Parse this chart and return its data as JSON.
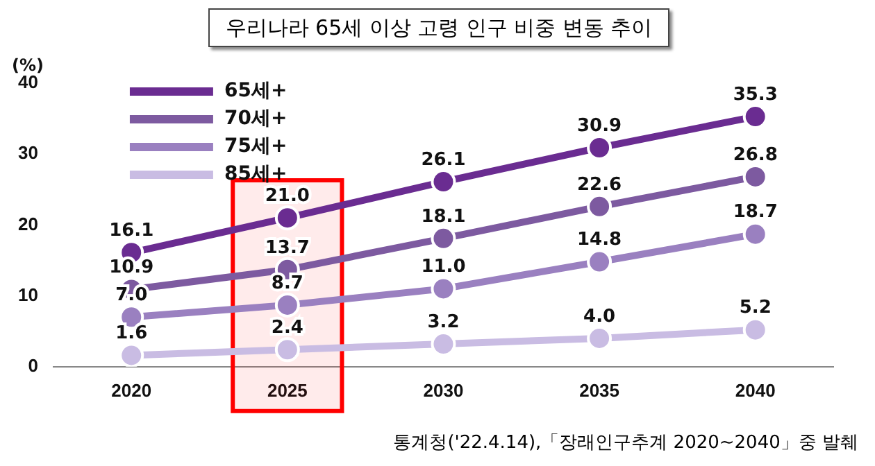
{
  "chart_data": {
    "type": "line",
    "title": "우리나라 65세 이상 고령 인구 비중 변동 추이",
    "ylabel": "(%)",
    "categories": [
      "2020",
      "2025",
      "2030",
      "2035",
      "2040"
    ],
    "series": [
      {
        "name": "65세+",
        "color": "#6a2c91",
        "values": [
          16.1,
          21.0,
          26.1,
          30.9,
          35.3
        ],
        "value_labels": [
          "16.1",
          "21.0",
          "26.1",
          "30.9",
          "35.3"
        ]
      },
      {
        "name": "70세+",
        "color": "#7d5aa0",
        "values": [
          10.9,
          13.7,
          18.1,
          22.6,
          26.8
        ],
        "value_labels": [
          "10.9",
          "13.7",
          "18.1",
          "22.6",
          "26.8"
        ]
      },
      {
        "name": "75세+",
        "color": "#9a80c0",
        "values": [
          7.0,
          8.7,
          11.0,
          14.8,
          18.7
        ],
        "value_labels": [
          "7.0",
          "8.7",
          "11.0",
          "14.8",
          "18.7"
        ]
      },
      {
        "name": "85세+",
        "color": "#c9bce3",
        "values": [
          1.6,
          2.4,
          3.2,
          4.0,
          5.2
        ],
        "value_labels": [
          "1.6",
          "2.4",
          "3.2",
          "4.0",
          "5.2"
        ]
      }
    ],
    "ylim": [
      0,
      40
    ],
    "yticks": [
      0,
      10,
      20,
      30,
      40
    ],
    "grid": false,
    "legend": "top left",
    "marker": "circle",
    "line_style": "solid",
    "bands": [
      {
        "axis": "x",
        "from": "2025",
        "to": "2025",
        "color": "#ff0000"
      }
    ],
    "annotations": [
      "통계청('22.4.14),「장래인구추계 2020~2040」중 발췌"
    ]
  }
}
